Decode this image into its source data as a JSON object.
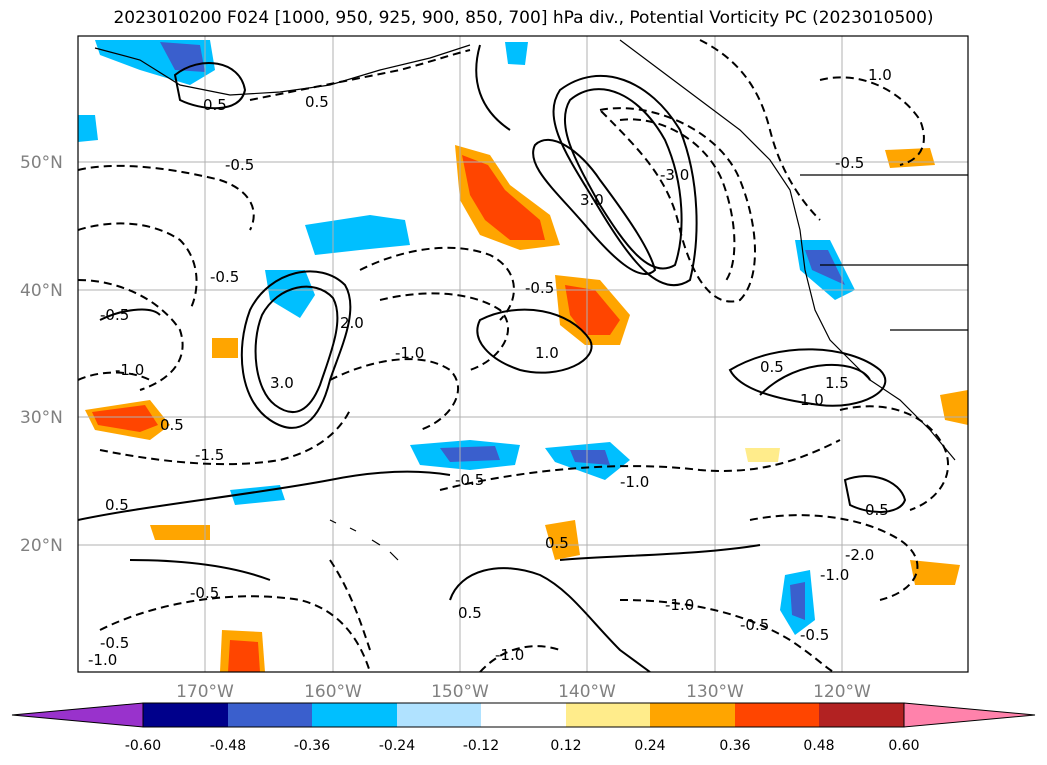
{
  "title": "2023010200 F024 [1000, 950, 925, 900, 850, 700] hPa div., Potential Vorticity PC (2023010500)",
  "map": {
    "lat_labels": [
      "50°N",
      "40°N",
      "30°N",
      "20°N"
    ],
    "lon_labels": [
      "170°W",
      "160°W",
      "150°W",
      "140°W",
      "130°W",
      "120°W"
    ],
    "contour_labels": [
      "0.5",
      "-0.5",
      "-1.0",
      "1.0",
      "-1.5",
      "1.5",
      "-2.0",
      "2.0",
      "-3.0",
      "3.0"
    ],
    "contour_style": {
      "positive": "solid",
      "negative": "dashed"
    }
  },
  "colorbar": {
    "ticks": [
      "-0.60",
      "-0.48",
      "-0.36",
      "-0.24",
      "-0.12",
      "0.12",
      "0.24",
      "0.36",
      "0.48",
      "0.60"
    ],
    "colors": [
      "#9932cc",
      "#00008b",
      "#3a5fcd",
      "#00bfff",
      "#b0e2ff",
      "#ffffff",
      "#ffec8b",
      "#ffa500",
      "#ff4500",
      "#b22222",
      "#ff82ab"
    ],
    "extend": "both"
  }
}
